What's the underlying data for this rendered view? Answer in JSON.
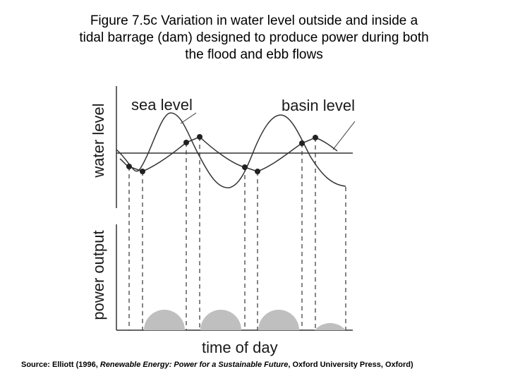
{
  "title": {
    "line1": "Figure 7.5c Variation in water level outside and inside a",
    "line2": "tidal barrage (dam) designed to produce power during both",
    "line3": "the flood and ebb flows"
  },
  "diagram": {
    "upper_axis_label": "water level",
    "lower_axis_label": "power output",
    "x_axis_label": "time of day",
    "sea_level_label": "sea level",
    "basin_level_label": "basin level",
    "power_pulses": 4
  },
  "source": {
    "prefix": "Source: Elliott (1996, ",
    "book": "Renewable Energy: Power for a Sustainable Future",
    "suffix": ", Oxford University Press, Oxford)"
  }
}
